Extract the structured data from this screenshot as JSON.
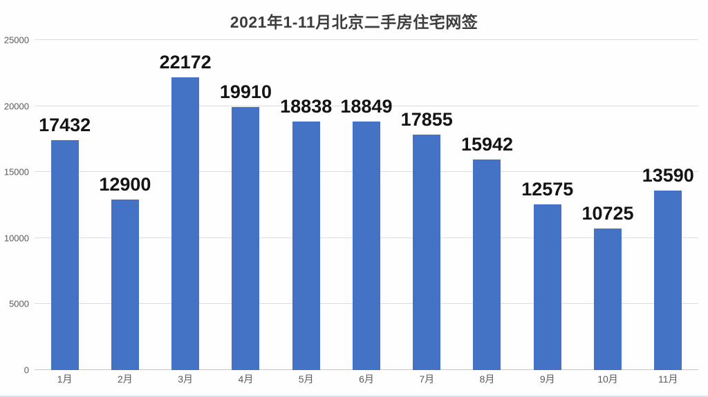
{
  "title": "2021年1-11月北京二手房住宅网签",
  "colors": {
    "bar": "#4472C4",
    "data_label": "#141414",
    "title_text": "#3d3d3d",
    "axis_text": "#595959",
    "gridline": "#dcdcdc",
    "baseline": "#c4c4c4",
    "bottom_border": "#d7e1f0",
    "background": "#fefefe"
  },
  "chart_data": {
    "type": "bar",
    "title": "2021年1-11月北京二手房住宅网签",
    "categories": [
      "1月",
      "2月",
      "3月",
      "4月",
      "5月",
      "6月",
      "7月",
      "8月",
      "9月",
      "10月",
      "11月"
    ],
    "values": [
      17432,
      12900,
      22172,
      19910,
      18838,
      18849,
      17855,
      15942,
      12575,
      10725,
      13590
    ],
    "xlabel": "",
    "ylabel": "",
    "ylim": [
      0,
      25000
    ],
    "yticks": [
      0,
      5000,
      10000,
      15000,
      20000,
      25000
    ],
    "grid": true,
    "legend": false,
    "data_labels": true
  }
}
